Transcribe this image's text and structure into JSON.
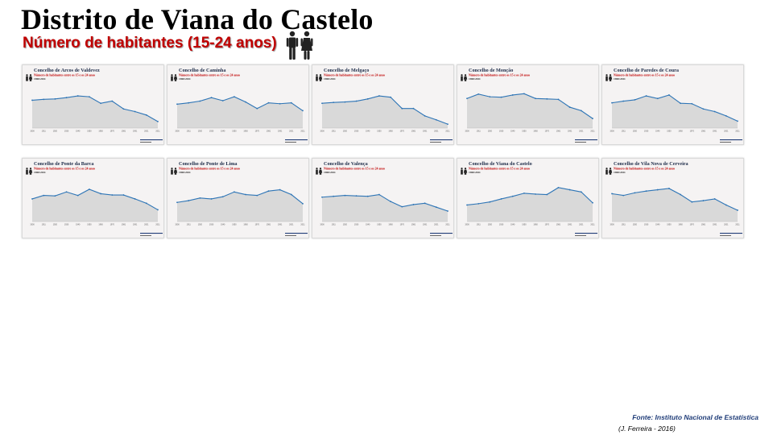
{
  "header": {
    "title": "Distrito de Viana do Castelo",
    "subtitle": "Número de habitantes (15-24 anos)"
  },
  "icons": {
    "people": "man-woman-icon",
    "mini_people": "man-woman-icon"
  },
  "colors": {
    "title": "#000000",
    "subtitle": "#c00000",
    "panel_title": "#1f2d4a",
    "panel_subtitle": "#c00000",
    "area_fill": "#d9d9d9",
    "line": "#2e75b6",
    "source": "#1f3c78"
  },
  "footer": {
    "source": "Fonte: Instituto Nacional de Estatística",
    "author": "(J. Ferreira - 2016)"
  },
  "chart_data": [
    {
      "type": "area",
      "title": "Concelho de Arcos de Valdevez",
      "subtitle": "Número de habitantes entre os 15 e os 24 anos",
      "period": "1900/2011",
      "x": [
        "1900",
        "1911",
        "1920",
        "1930",
        "1940",
        "1950",
        "1960",
        "1970",
        "1981",
        "1991",
        "2001",
        "2011"
      ],
      "values": [
        0.64,
        0.66,
        0.67,
        0.7,
        0.74,
        0.72,
        0.57,
        0.62,
        0.44,
        0.38,
        0.3,
        0.15
      ],
      "ylim": [
        0,
        1
      ]
    },
    {
      "type": "area",
      "title": "Concelho de Caminha",
      "subtitle": "Número de habitantes entre os 15 e os 24 anos",
      "period": "1900/2011",
      "x": [
        "1900",
        "1911",
        "1920",
        "1930",
        "1940",
        "1950",
        "1960",
        "1970",
        "1981",
        "1991",
        "2001",
        "2011"
      ],
      "values": [
        0.55,
        0.58,
        0.62,
        0.7,
        0.63,
        0.72,
        0.6,
        0.45,
        0.58,
        0.56,
        0.58,
        0.4
      ],
      "ylim": [
        0,
        1
      ]
    },
    {
      "type": "area",
      "title": "Concelho de Melgaço",
      "subtitle": "Número de habitantes entre os 15 e os 24 anos",
      "period": "1900/2011",
      "x": [
        "1900",
        "1911",
        "1920",
        "1930",
        "1940",
        "1950",
        "1960",
        "1970",
        "1981",
        "1991",
        "2001",
        "2011"
      ],
      "values": [
        0.57,
        0.59,
        0.6,
        0.62,
        0.67,
        0.74,
        0.71,
        0.45,
        0.45,
        0.28,
        0.19,
        0.09
      ],
      "ylim": [
        0,
        1
      ]
    },
    {
      "type": "area",
      "title": "Concelho de Monção",
      "subtitle": "Número de habitantes entre os 15 e os 24 anos",
      "period": "1900/2011",
      "x": [
        "1900",
        "1911",
        "1920",
        "1930",
        "1940",
        "1950",
        "1960",
        "1970",
        "1981",
        "1991",
        "2001",
        "2011"
      ],
      "values": [
        0.68,
        0.78,
        0.72,
        0.71,
        0.76,
        0.79,
        0.68,
        0.67,
        0.66,
        0.48,
        0.4,
        0.22
      ],
      "ylim": [
        0,
        1
      ]
    },
    {
      "type": "area",
      "title": "Concelho de Paredes de Coura",
      "subtitle": "Número de habitantes entre os 15 e os 24 anos",
      "period": "1900/2011",
      "x": [
        "1900",
        "1911",
        "1920",
        "1930",
        "1940",
        "1950",
        "1960",
        "1970",
        "1981",
        "1991",
        "2001",
        "2011"
      ],
      "values": [
        0.58,
        0.62,
        0.65,
        0.74,
        0.68,
        0.76,
        0.57,
        0.56,
        0.44,
        0.38,
        0.28,
        0.16
      ],
      "ylim": [
        0,
        1
      ]
    },
    {
      "type": "area",
      "title": "Concelho de Ponte da Barca",
      "subtitle": "Número de habitantes entre os 15 e os 24 anos",
      "period": "1900/2011",
      "x": [
        "1900",
        "1911",
        "1920",
        "1930",
        "1940",
        "1950",
        "1960",
        "1970",
        "1981",
        "1991",
        "2001",
        "2011"
      ],
      "values": [
        0.52,
        0.6,
        0.59,
        0.68,
        0.6,
        0.74,
        0.64,
        0.61,
        0.61,
        0.52,
        0.42,
        0.27
      ],
      "ylim": [
        0,
        1
      ]
    },
    {
      "type": "area",
      "title": "Concelho de Ponte de Lima",
      "subtitle": "Número de habitantes entre os 15 e os 24 anos",
      "period": "1900/2011",
      "x": [
        "1900",
        "1911",
        "1920",
        "1930",
        "1940",
        "1950",
        "1960",
        "1970",
        "1981",
        "1991",
        "2001",
        "2011"
      ],
      "values": [
        0.44,
        0.48,
        0.54,
        0.52,
        0.57,
        0.68,
        0.62,
        0.6,
        0.7,
        0.73,
        0.62,
        0.41
      ],
      "ylim": [
        0,
        1
      ]
    },
    {
      "type": "area",
      "title": "Concelho de Valença",
      "subtitle": "Número de habitantes entre os 15 e os 24 anos",
      "period": "1900/2011",
      "x": [
        "1900",
        "1911",
        "1920",
        "1930",
        "1940",
        "1950",
        "1960",
        "1970",
        "1981",
        "1991",
        "2001",
        "2011"
      ],
      "values": [
        0.56,
        0.58,
        0.6,
        0.59,
        0.58,
        0.62,
        0.46,
        0.34,
        0.39,
        0.42,
        0.33,
        0.24
      ],
      "ylim": [
        0,
        1
      ]
    },
    {
      "type": "area",
      "title": "Concelho de Viana do Castelo",
      "subtitle": "Número de habitantes entre os 15 e os 24 anos",
      "period": "1900/2011",
      "x": [
        "1900",
        "1911",
        "1920",
        "1930",
        "1940",
        "1950",
        "1960",
        "1970",
        "1981",
        "1991",
        "2001",
        "2011"
      ],
      "values": [
        0.38,
        0.41,
        0.45,
        0.52,
        0.58,
        0.65,
        0.63,
        0.62,
        0.78,
        0.73,
        0.68,
        0.43
      ],
      "ylim": [
        0,
        1
      ]
    },
    {
      "type": "area",
      "title": "Concelho de Vila Nova de Cerveira",
      "subtitle": "Número de habitantes entre os 15 e os 24 anos",
      "period": "1900/2011",
      "x": [
        "1900",
        "1911",
        "1920",
        "1930",
        "1940",
        "1950",
        "1960",
        "1970",
        "1981",
        "1991",
        "2001",
        "2011"
      ],
      "values": [
        0.64,
        0.6,
        0.66,
        0.7,
        0.73,
        0.76,
        0.62,
        0.45,
        0.48,
        0.52,
        0.38,
        0.26
      ],
      "ylim": [
        0,
        1
      ]
    }
  ]
}
